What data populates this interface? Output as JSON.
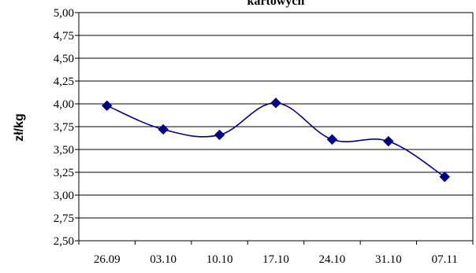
{
  "chart_data": {
    "type": "line",
    "title": "kartowych",
    "xlabel": "",
    "ylabel": "zł/kg",
    "categories": [
      "26.09",
      "03.10",
      "10.10",
      "17.10",
      "24.10",
      "31.10",
      "07.11"
    ],
    "series": [
      {
        "values": [
          3.98,
          3.72,
          3.66,
          4.01,
          3.61,
          3.59,
          3.2
        ],
        "color": "#00008b",
        "marker": "diamond",
        "smooth": true
      }
    ],
    "yticks": [
      "2,50",
      "2,75",
      "3,00",
      "3,25",
      "3,50",
      "3,75",
      "4,00",
      "4,25",
      "4,50",
      "4,75",
      "5,00"
    ],
    "ylim": [
      2.5,
      5.0
    ],
    "grid": true,
    "legend": "none"
  }
}
